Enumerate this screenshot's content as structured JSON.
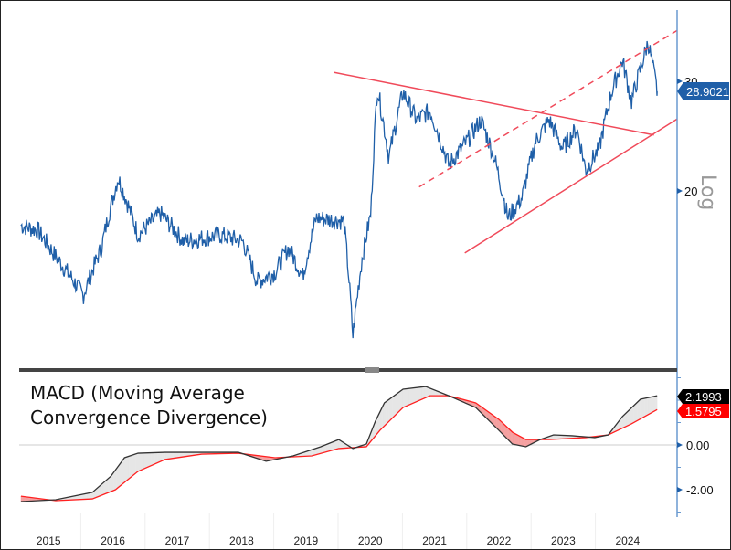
{
  "chart_data": [
    {
      "type": "line",
      "scale": "log",
      "ylabel": "Log",
      "y_ticks": [
        20,
        30
      ],
      "ylim": [
        11.5,
        36
      ],
      "xlim": [
        2015.0,
        2025.0
      ],
      "x_tick_labels": [
        "2015",
        "2016",
        "2017",
        "2018",
        "2019",
        "2020",
        "2021",
        "2022",
        "2023",
        "2024"
      ],
      "last_value_label": "28.9021",
      "series": [
        {
          "color": "#1f5fa8",
          "x": [
            2015.07,
            2015.33,
            2015.61,
            2016.04,
            2016.32,
            2016.58,
            2016.89,
            2017.24,
            2017.6,
            2018.17,
            2018.52,
            2018.74,
            2019.02,
            2019.23,
            2019.45,
            2019.66,
            2020.09,
            2020.23,
            2020.37,
            2020.51,
            2020.61,
            2020.79,
            2021.01,
            2021.22,
            2021.43,
            2021.72,
            2022.0,
            2022.22,
            2022.43,
            2022.64,
            2022.86,
            2023.07,
            2023.28,
            2023.49,
            2023.71,
            2023.85,
            2024.06,
            2024.25,
            2024.42,
            2024.56,
            2024.7,
            2024.82,
            2024.96
          ],
          "y": [
            17.6,
            17.3,
            15.7,
            13.6,
            16.2,
            21.0,
            17.0,
            18.4,
            16.6,
            17.0,
            16.6,
            14.3,
            14.8,
            16.2,
            14.6,
            18.1,
            17.9,
            11.7,
            15.5,
            18.4,
            29.3,
            22.6,
            28.8,
            26.0,
            26.9,
            22.0,
            24.0,
            26.0,
            22.6,
            18.1,
            19.5,
            24.0,
            26.0,
            23.4,
            25.2,
            21.6,
            23.4,
            28.8,
            32.4,
            27.8,
            31.4,
            34.7,
            28.9
          ]
        }
      ],
      "trendlines": [
        {
          "style": "solid",
          "color": "#f04a5a",
          "from": [
            2019.94,
            31.0
          ],
          "to": [
            2024.91,
            24.6
          ]
        },
        {
          "style": "solid",
          "color": "#f04a5a",
          "from": [
            2021.97,
            15.9
          ],
          "to": [
            2025.27,
            26.1
          ]
        },
        {
          "style": "dashed",
          "color": "#f04a5a",
          "from": [
            2021.26,
            20.3
          ],
          "to": [
            2025.27,
            36.2
          ]
        }
      ]
    },
    {
      "type": "line",
      "title_line1": "MACD (Moving Average",
      "title_line2": "Convergence Divergence)",
      "y_ticks": [
        "-2.00",
        "0.00"
      ],
      "ylim": [
        -3,
        3
      ],
      "macd_label": "2.1993",
      "signal_label": "1.5795",
      "macd": {
        "color": "#333333",
        "x": [
          2015.07,
          2015.61,
          2016.18,
          2016.47,
          2016.68,
          2016.89,
          2017.31,
          2017.88,
          2018.45,
          2018.88,
          2019.3,
          2019.73,
          2020.01,
          2020.23,
          2020.44,
          2020.58,
          2020.72,
          2021.01,
          2021.36,
          2021.72,
          2022.14,
          2022.5,
          2022.71,
          2022.92,
          2023.14,
          2023.35,
          2023.64,
          2023.99,
          2024.2,
          2024.42,
          2024.7,
          2024.96
        ],
        "y": [
          -2.53,
          -2.45,
          -2.12,
          -1.39,
          -0.57,
          -0.37,
          -0.33,
          -0.33,
          -0.33,
          -0.73,
          -0.49,
          -0.08,
          0.24,
          -0.16,
          0.04,
          1.06,
          1.88,
          2.49,
          2.61,
          2.2,
          1.67,
          0.65,
          0.04,
          -0.08,
          0.24,
          0.45,
          0.41,
          0.33,
          0.45,
          1.27,
          2.04,
          2.2
        ]
      },
      "signal": {
        "color": "#ff2020",
        "x": [
          2015.07,
          2015.61,
          2016.18,
          2016.54,
          2016.89,
          2017.31,
          2017.88,
          2018.45,
          2019.02,
          2019.59,
          2020.01,
          2020.44,
          2020.65,
          2021.01,
          2021.43,
          2021.72,
          2022.14,
          2022.5,
          2022.71,
          2022.92,
          2023.28,
          2023.85,
          2024.2,
          2024.56,
          2024.96
        ],
        "y": [
          -2.29,
          -2.49,
          -2.41,
          -2.0,
          -1.18,
          -0.65,
          -0.41,
          -0.37,
          -0.57,
          -0.49,
          -0.16,
          -0.08,
          0.65,
          1.67,
          2.2,
          2.2,
          1.88,
          1.14,
          0.57,
          0.24,
          0.24,
          0.33,
          0.45,
          0.94,
          1.58
        ]
      }
    }
  ]
}
